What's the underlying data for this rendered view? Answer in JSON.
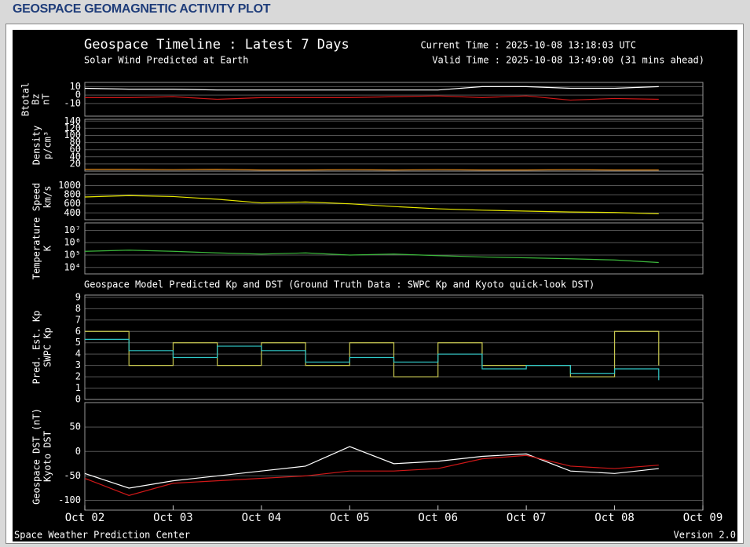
{
  "page_title": "GEOSPACE GEOMAGNETIC ACTIVITY PLOT",
  "plot_title": "Geospace Timeline : Latest 7 Days",
  "current_time": "Current Time : 2025-10-08 13:18:03 UTC",
  "valid_time": "Valid Time : 2025-10-08 13:49:00 (31 mins ahead)",
  "section1_title": "Solar Wind Predicted at Earth",
  "section2_title": "Geospace Model Predicted Kp and DST (Ground Truth Data : SWPC Kp and Kyoto quick-look DST)",
  "footer_left": "Space Weather Prediction Center",
  "footer_right": "Version 2.0",
  "chart_data": [
    {
      "type": "line",
      "ylabel": "nT",
      "ylabel_color": "#ffffff",
      "xlim": [
        0,
        7
      ],
      "ylim": [
        -25,
        15
      ],
      "yticks": [
        10,
        0,
        -10
      ],
      "grid": true,
      "x": [
        0,
        0.5,
        1,
        1.5,
        2,
        2.5,
        3,
        3.5,
        4,
        4.5,
        5,
        5.5,
        6,
        6.5
      ],
      "series": [
        {
          "name": "Btotal",
          "color": "#ffffff",
          "values": [
            8,
            7,
            7,
            6,
            6,
            6,
            6,
            6,
            6,
            10,
            10,
            8,
            8,
            10
          ]
        },
        {
          "name": "Bz",
          "color": "#d01818",
          "values": [
            -3,
            -3,
            -2,
            -5,
            -3,
            -3,
            -3,
            -2,
            -1,
            -3,
            -1,
            -6,
            -4,
            -5
          ]
        }
      ]
    },
    {
      "type": "line",
      "ylabel": "p/cm³",
      "ylabel_color": "#e08a1e",
      "xlim": [
        0,
        7
      ],
      "ylim": [
        0,
        145
      ],
      "yticks": [
        140,
        120,
        100,
        80,
        60,
        40,
        20
      ],
      "grid": true,
      "x": [
        0,
        0.5,
        1,
        1.5,
        2,
        2.5,
        3,
        3.5,
        4,
        4.5,
        5,
        5.5,
        6,
        6.5
      ],
      "series": [
        {
          "name": "Density",
          "color": "#e08a1e",
          "values": [
            5,
            5,
            4,
            5,
            3,
            3,
            4,
            3,
            4,
            3,
            3,
            4,
            3,
            3
          ]
        }
      ]
    },
    {
      "type": "line",
      "ylabel": "km/s",
      "ylabel_color": "#e8e800",
      "xlim": [
        0,
        7
      ],
      "ylim": [
        250,
        1250
      ],
      "yticks": [
        1000,
        800,
        600,
        400
      ],
      "grid": true,
      "x": [
        0,
        0.5,
        1,
        1.5,
        2,
        2.5,
        3,
        3.5,
        4,
        4.5,
        5,
        5.5,
        6,
        6.5
      ],
      "series": [
        {
          "name": "Speed",
          "color": "#e8e800",
          "values": [
            750,
            780,
            760,
            700,
            620,
            640,
            600,
            540,
            490,
            460,
            440,
            420,
            410,
            380
          ]
        }
      ]
    },
    {
      "type": "line",
      "log": true,
      "ylabel": "K",
      "ylabel_color": "#3cb83c",
      "xlim": [
        0,
        7
      ],
      "ylim": [
        3000,
        40000000
      ],
      "yticks": [
        {
          "value": 10000000,
          "label": "10⁷"
        },
        {
          "value": 1000000,
          "label": "10⁶"
        },
        {
          "value": 100000,
          "label": "10⁵"
        },
        {
          "value": 10000,
          "label": "10⁴"
        }
      ],
      "grid": true,
      "x": [
        0,
        0.5,
        1,
        1.5,
        2,
        2.5,
        3,
        3.5,
        4,
        4.5,
        5,
        5.5,
        6,
        6.5
      ],
      "series": [
        {
          "name": "Temperature",
          "color": "#3cb83c",
          "values": [
            200000,
            250000,
            200000,
            150000,
            120000,
            150000,
            100000,
            120000,
            90000,
            70000,
            60000,
            50000,
            40000,
            25000
          ]
        }
      ]
    },
    {
      "type": "line",
      "step": true,
      "xlim": [
        0,
        7
      ],
      "ylim": [
        0,
        9.2
      ],
      "yticks": [
        9,
        8,
        7,
        6,
        5,
        4,
        3,
        2,
        1,
        0
      ],
      "grid": true,
      "x": [
        0,
        0.5,
        1,
        1.5,
        2,
        2.5,
        3,
        3.5,
        4,
        4.5,
        5,
        5.5,
        6,
        6.5
      ],
      "series": [
        {
          "name": "Pred. Est. Kp",
          "color": "#c8c850",
          "values": [
            6,
            3,
            5,
            3,
            5,
            3,
            5,
            2,
            5,
            3,
            3,
            2,
            6,
            3
          ]
        },
        {
          "name": "SWPC Kp",
          "color": "#30c8c8",
          "values": [
            5.3,
            4.3,
            3.7,
            4.7,
            4.3,
            3.3,
            3.7,
            3.3,
            4,
            2.7,
            3,
            2.3,
            2.7,
            1.7
          ]
        }
      ]
    },
    {
      "type": "line",
      "xlim": [
        0,
        7
      ],
      "ylim": [
        -120,
        100
      ],
      "yticks": [
        50,
        0,
        -50,
        -100
      ],
      "grid": true,
      "xticks": [
        {
          "value": 0,
          "label": "Oct 02"
        },
        {
          "value": 1,
          "label": "Oct 03"
        },
        {
          "value": 2,
          "label": "Oct 04"
        },
        {
          "value": 3,
          "label": "Oct 05"
        },
        {
          "value": 4,
          "label": "Oct 06"
        },
        {
          "value": 5,
          "label": "Oct 07"
        },
        {
          "value": 6,
          "label": "Oct 08"
        },
        {
          "value": 7,
          "label": "Oct 09"
        }
      ],
      "x": [
        0,
        0.5,
        1,
        1.5,
        2,
        2.5,
        3,
        3.5,
        4,
        4.5,
        5,
        5.5,
        6,
        6.5
      ],
      "series": [
        {
          "name": "Geospace DST (nT)",
          "color": "#ffffff",
          "values": [
            -45,
            -75,
            -60,
            -50,
            -40,
            -30,
            10,
            -25,
            -20,
            -10,
            -5,
            -40,
            -45,
            -35
          ]
        },
        {
          "name": "Kyoto DST",
          "color": "#d01818",
          "values": [
            -55,
            -90,
            -65,
            -60,
            -55,
            -50,
            -40,
            -40,
            -35,
            -15,
            -8,
            -30,
            -35,
            -28
          ]
        }
      ]
    }
  ]
}
